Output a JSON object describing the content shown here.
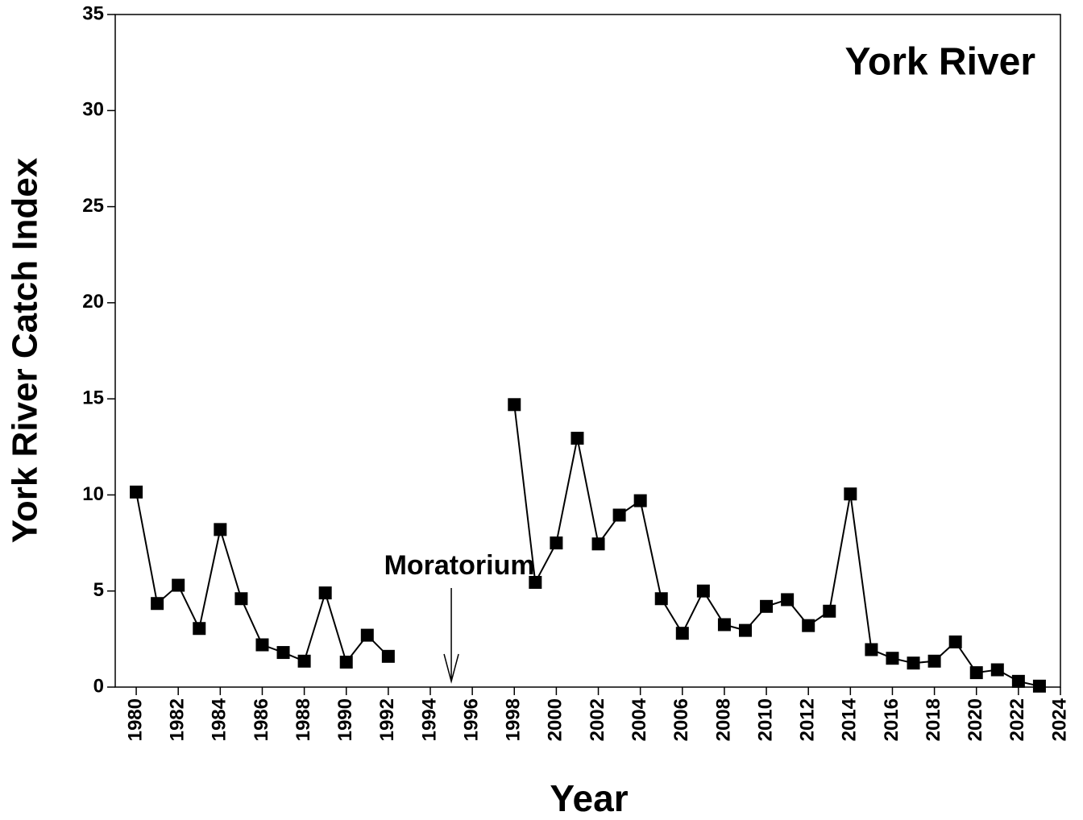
{
  "chart_data": {
    "type": "line",
    "title": "York River",
    "xlabel": "Year",
    "ylabel": "York River Catch Index",
    "x": [
      1980,
      1981,
      1982,
      1983,
      1984,
      1985,
      1986,
      1987,
      1988,
      1989,
      1990,
      1991,
      1992,
      1993,
      1994,
      1995,
      1996,
      1997,
      1998,
      1999,
      2000,
      2001,
      2002,
      2003,
      2004,
      2005,
      2006,
      2007,
      2008,
      2009,
      2010,
      2011,
      2012,
      2013,
      2014,
      2015,
      2016,
      2017,
      2018,
      2019,
      2020,
      2021,
      2022,
      2023
    ],
    "series": [
      {
        "name": "York River",
        "color": "#000000",
        "values": [
          10.15,
          4.35,
          5.3,
          3.05,
          8.2,
          4.6,
          2.2,
          1.8,
          1.35,
          4.9,
          1.3,
          2.7,
          1.6,
          null,
          null,
          null,
          null,
          null,
          14.7,
          5.45,
          7.5,
          12.95,
          7.45,
          8.95,
          9.7,
          4.6,
          2.8,
          5.0,
          3.25,
          2.95,
          4.2,
          4.55,
          3.2,
          3.95,
          10.05,
          1.95,
          1.5,
          1.25,
          1.35,
          2.35,
          0.75,
          0.9,
          0.3,
          0.05
        ]
      }
    ],
    "xlim": [
      1979,
      2024
    ],
    "xticks": [
      1980,
      1982,
      1984,
      1986,
      1988,
      1990,
      1992,
      1994,
      1996,
      1998,
      2000,
      2002,
      2004,
      2006,
      2008,
      2010,
      2012,
      2014,
      2016,
      2018,
      2020,
      2022,
      2024
    ],
    "ylim": [
      0,
      35
    ],
    "yticks": [
      0,
      5,
      10,
      15,
      20,
      25,
      30,
      35
    ],
    "annotations": [
      {
        "text": "Moratorium",
        "x": 1995
      }
    ]
  }
}
